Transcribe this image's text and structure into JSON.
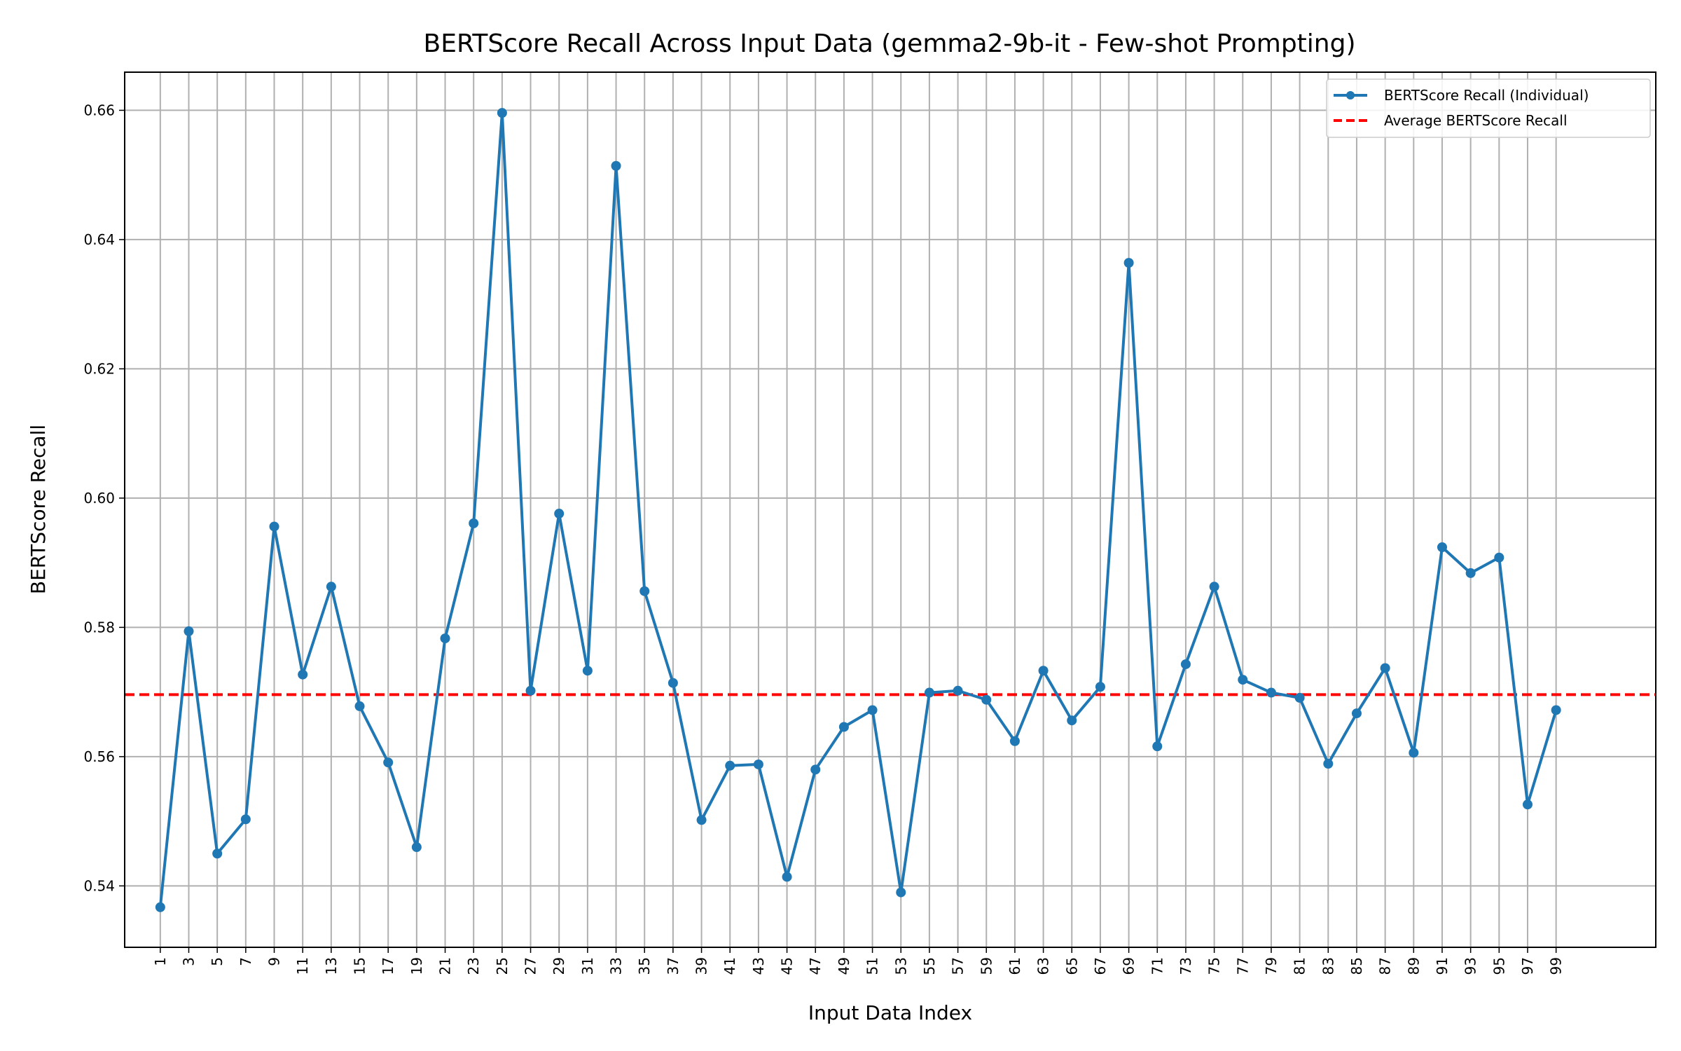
{
  "chart_data": {
    "type": "line",
    "title": "BERTScore Recall Across Input Data (gemma2-9b-it - Few-shot Prompting)",
    "xlabel": "Input Data Index",
    "ylabel": "BERTScore Recall",
    "xlim": [
      -1.5,
      106
    ],
    "ylim": [
      0.5305,
      0.6659
    ],
    "x_ticks": [
      1,
      3,
      5,
      7,
      9,
      11,
      13,
      15,
      17,
      19,
      21,
      23,
      25,
      27,
      29,
      31,
      33,
      35,
      37,
      39,
      41,
      43,
      45,
      47,
      49,
      51,
      53,
      55,
      57,
      59,
      61,
      63,
      65,
      67,
      69,
      71,
      73,
      75,
      77,
      79,
      81,
      83,
      85,
      87,
      89,
      91,
      93,
      95,
      97,
      99
    ],
    "y_ticks": [
      0.54,
      0.56,
      0.58,
      0.6,
      0.62,
      0.64,
      0.66
    ],
    "y_tick_labels": [
      "0.54",
      "0.56",
      "0.58",
      "0.60",
      "0.62",
      "0.64",
      "0.66"
    ],
    "grid": true,
    "legend_position": "top-right",
    "series": [
      {
        "name": "BERTScore Recall (Individual)",
        "color": "#1f77b4",
        "marker": "circle",
        "x": [
          1,
          3,
          5,
          7,
          9,
          11,
          13,
          15,
          17,
          19,
          21,
          23,
          25,
          27,
          29,
          31,
          33,
          35,
          37,
          39,
          41,
          43,
          45,
          47,
          49,
          51,
          53,
          55,
          57,
          59,
          61,
          63,
          65,
          67,
          69,
          71,
          73,
          75,
          77,
          79,
          81,
          83,
          85,
          87,
          89,
          91,
          93,
          95,
          97,
          99
        ],
        "values": [
          0.5367,
          0.5794,
          0.545,
          0.5503,
          0.5956,
          0.5727,
          0.5863,
          0.5678,
          0.5591,
          0.546,
          0.5783,
          0.5961,
          0.6596,
          0.5702,
          0.5976,
          0.5733,
          0.6514,
          0.5856,
          0.5714,
          0.5502,
          0.5586,
          0.5588,
          0.5414,
          0.558,
          0.5646,
          0.5672,
          0.539,
          0.5699,
          0.5702,
          0.5688,
          0.5624,
          0.5733,
          0.5656,
          0.5708,
          0.6364,
          0.5616,
          0.5743,
          0.5863,
          0.5719,
          0.5699,
          0.5691,
          0.5589,
          0.5667,
          0.5737,
          0.5606,
          0.5924,
          0.5884,
          0.5908,
          0.5526,
          0.5672
        ]
      }
    ],
    "reference_lines": [
      {
        "name": "Average BERTScore Recall",
        "value": 0.5696,
        "color": "#ff0000",
        "style": "dashed"
      }
    ]
  }
}
